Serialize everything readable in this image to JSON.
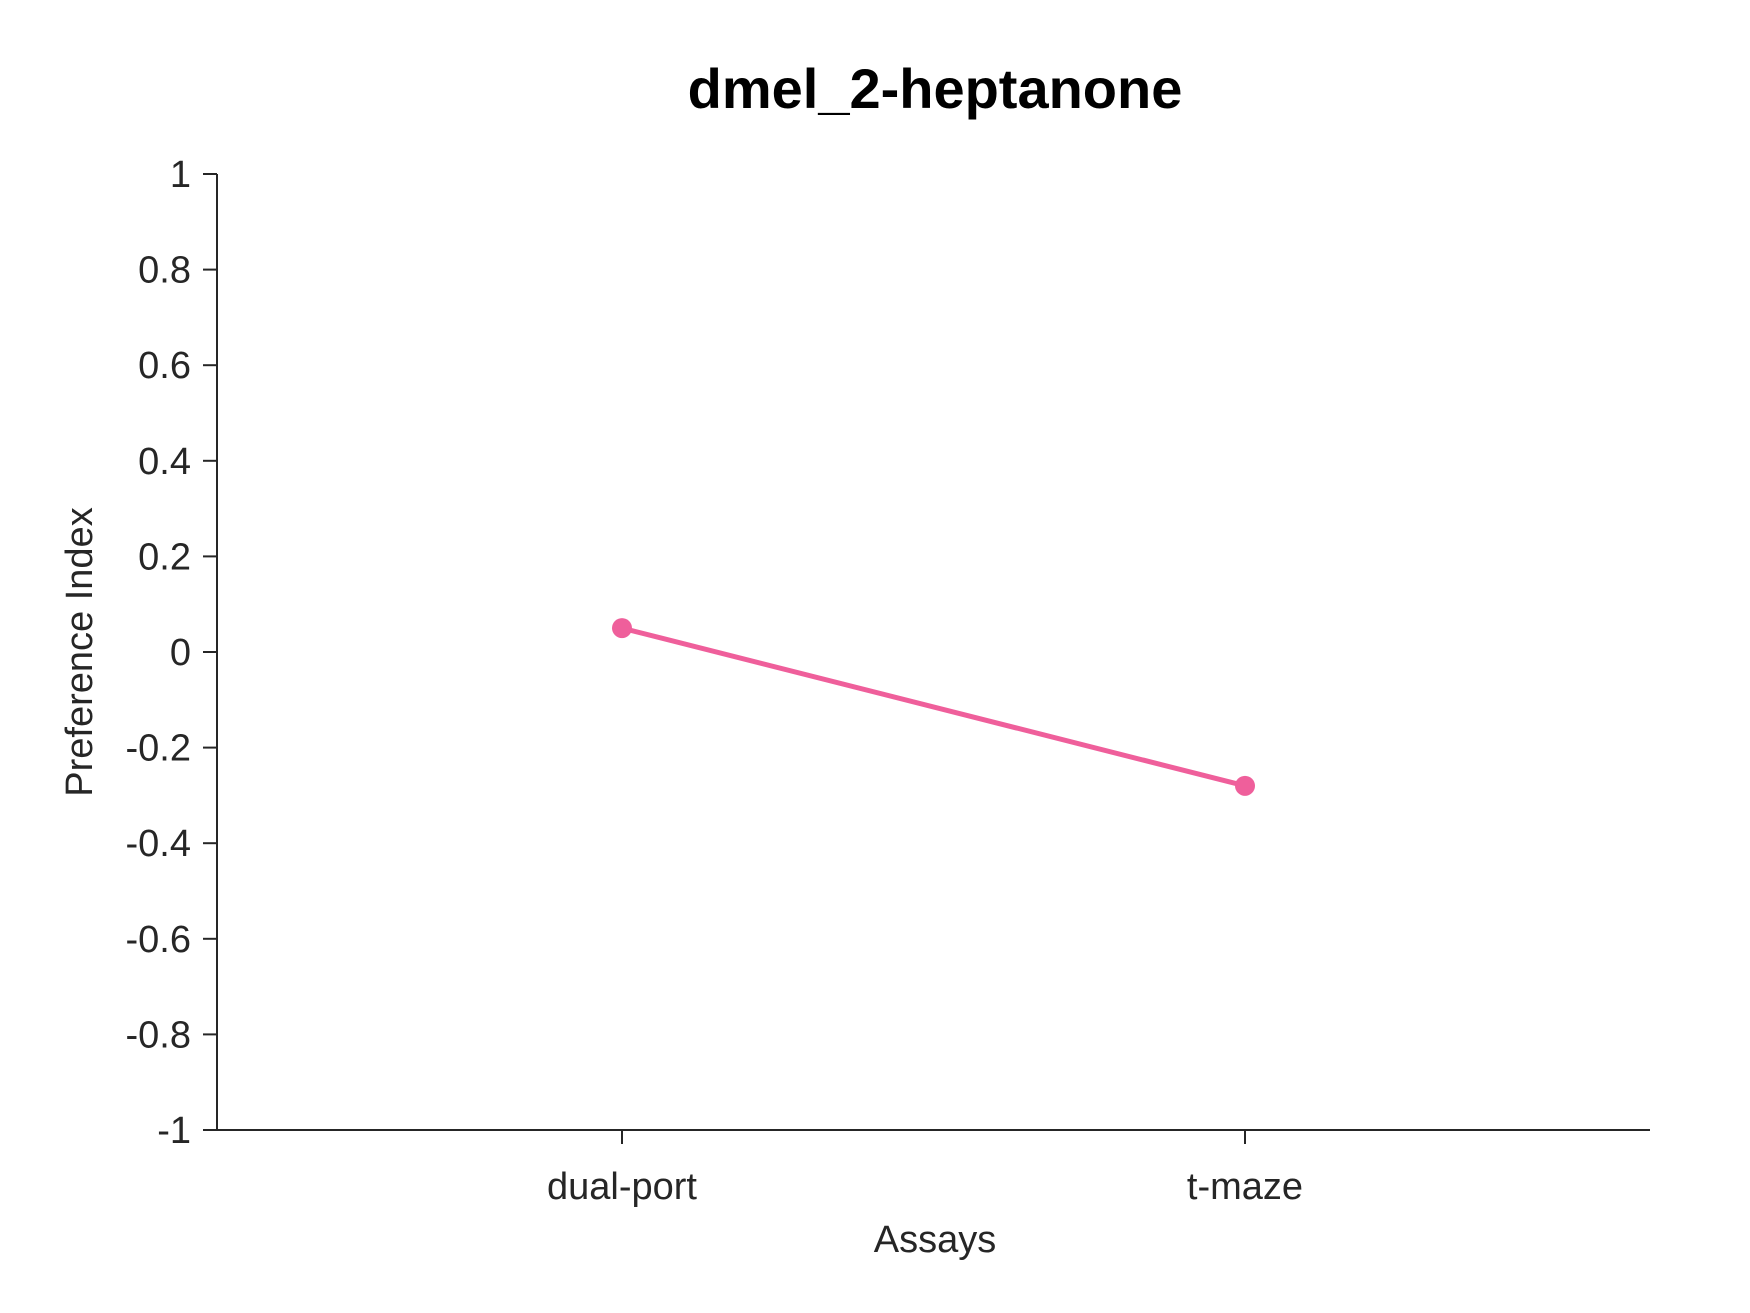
{
  "chart_data": {
    "type": "line",
    "title": "dmel_2-heptanone",
    "xlabel": "Assays",
    "ylabel": "Preference Index",
    "categories": [
      "dual-port",
      "t-maze"
    ],
    "series": [
      {
        "values": [
          0.05,
          -0.28
        ],
        "color": "#ef5f9b",
        "marker": "circle"
      }
    ],
    "ylim": [
      -1,
      1
    ],
    "yticks": [
      1,
      0.8,
      0.6,
      0.4,
      0.2,
      0,
      -0.2,
      -0.4,
      -0.6,
      -0.8,
      -1
    ],
    "ytick_labels": [
      "1",
      "0.8",
      "0.6",
      "0.4",
      "0.2",
      "0",
      "-0.2",
      "-0.4",
      "-0.6",
      "-0.8",
      "-1"
    ],
    "grid": false,
    "legend": "none"
  }
}
